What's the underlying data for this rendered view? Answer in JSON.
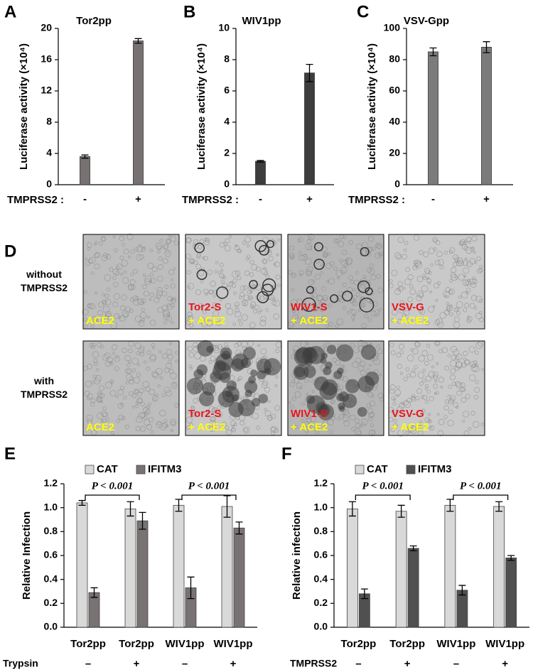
{
  "chart_data": [
    {
      "type": "bar",
      "panel": "A",
      "title": "Tor2pp",
      "ylabel": "Luciferase activity (×10⁴)",
      "xlabel": "TMPRSS2 :",
      "categories": [
        "-",
        "+"
      ],
      "values": [
        3.6,
        18.4
      ],
      "errors": [
        0.2,
        0.3
      ],
      "color": "#777171",
      "ylim": [
        0,
        20
      ],
      "yticks": [
        0,
        4,
        8,
        12,
        16,
        20
      ]
    },
    {
      "type": "bar",
      "panel": "B",
      "title": "WIV1pp",
      "ylabel": "Luciferase activity (×10⁴)",
      "xlabel": "TMPRSS2 :",
      "categories": [
        "-",
        "+"
      ],
      "values": [
        1.5,
        7.15
      ],
      "errors": [
        0.05,
        0.55
      ],
      "color": "#3d3d3d",
      "ylim": [
        0,
        10
      ],
      "yticks": [
        0,
        2,
        4,
        6,
        8,
        10
      ]
    },
    {
      "type": "bar",
      "panel": "C",
      "title": "VSV-Gpp",
      "ylabel": "Luciferase activity (×10⁴)",
      "xlabel": "TMPRSS2 :",
      "categories": [
        "-",
        "+"
      ],
      "values": [
        85,
        88
      ],
      "errors": [
        2.5,
        3.5
      ],
      "color": "#7b7b7b",
      "ylim": [
        0,
        100
      ],
      "yticks": [
        0,
        20,
        40,
        60,
        80,
        100
      ]
    },
    {
      "type": "grouped_bar",
      "panel": "E",
      "ylabel": "Relative Infection",
      "categories": [
        "Tor2pp",
        "Tor2pp",
        "WIV1pp",
        "WIV1pp"
      ],
      "row_label": "Trypsin",
      "row_values": [
        "–",
        "+",
        "–",
        "+"
      ],
      "series": [
        {
          "name": "CAT",
          "color": "#d9d9d9",
          "values": [
            1.04,
            0.99,
            1.02,
            1.01
          ],
          "errors": [
            0.02,
            0.06,
            0.05,
            0.09
          ]
        },
        {
          "name": "IFITM3",
          "color": "#787272",
          "values": [
            0.29,
            0.89,
            0.33,
            0.83
          ],
          "errors": [
            0.04,
            0.07,
            0.09,
            0.05
          ]
        }
      ],
      "annotations": [
        "P < 0.001",
        "P < 0.001"
      ],
      "ylim": [
        0,
        1.2
      ],
      "yticks": [
        {
          "value": 0,
          "label": "0.0"
        },
        {
          "value": 0.2,
          "label": "0.2"
        },
        {
          "value": 0.4,
          "label": "0.4"
        },
        {
          "value": 0.6,
          "label": "0.6"
        },
        {
          "value": 0.8,
          "label": "0.8"
        },
        {
          "value": 1,
          "label": "1.0"
        },
        {
          "value": 1.2,
          "label": "1.2"
        }
      ]
    },
    {
      "type": "grouped_bar",
      "panel": "F",
      "ylabel": "Relative infection",
      "categories": [
        "Tor2pp",
        "Tor2pp",
        "WIV1pp",
        "WIV1pp"
      ],
      "row_label": "TMPRSS2",
      "row_values": [
        "–",
        "+",
        "–",
        "+"
      ],
      "series": [
        {
          "name": "CAT",
          "color": "#d9d9d9",
          "values": [
            0.99,
            0.97,
            1.02,
            1.01
          ],
          "errors": [
            0.06,
            0.05,
            0.05,
            0.04
          ]
        },
        {
          "name": "IFITM3",
          "color": "#505050",
          "values": [
            0.28,
            0.66,
            0.31,
            0.58
          ],
          "errors": [
            0.04,
            0.02,
            0.04,
            0.02
          ]
        }
      ],
      "annotations": [
        "P < 0.001",
        "P < 0.001"
      ],
      "ylim": [
        0,
        1.2
      ],
      "yticks": [
        {
          "value": 0,
          "label": "0.0"
        },
        {
          "value": 0.2,
          "label": "0.2"
        },
        {
          "value": 0.4,
          "label": "0.4"
        },
        {
          "value": 0.6,
          "label": "0.6"
        },
        {
          "value": 0.8,
          "label": "0.8"
        },
        {
          "value": 1,
          "label": "1.0"
        },
        {
          "value": 1.2,
          "label": "1.2"
        }
      ]
    }
  ],
  "micrographs": {
    "panel": "D",
    "rows": [
      {
        "label": [
          "without",
          "TMPRSS2"
        ],
        "cells": [
          {
            "spike": null,
            "receptor": "ACE2"
          },
          {
            "spike": "Tor2-S",
            "receptor": "+ ACE2"
          },
          {
            "spike": "WIV1-S",
            "receptor": "+ ACE2"
          },
          {
            "spike": "VSV-G",
            "receptor": "+ ACE2"
          }
        ]
      },
      {
        "label": [
          "with",
          "TMPRSS2"
        ],
        "cells": [
          {
            "spike": null,
            "receptor": "ACE2"
          },
          {
            "spike": "Tor2-S",
            "receptor": "+ ACE2"
          },
          {
            "spike": "WIV1-S",
            "receptor": "+ ACE2"
          },
          {
            "spike": "VSV-G",
            "receptor": "+ ACE2"
          }
        ]
      }
    ]
  }
}
